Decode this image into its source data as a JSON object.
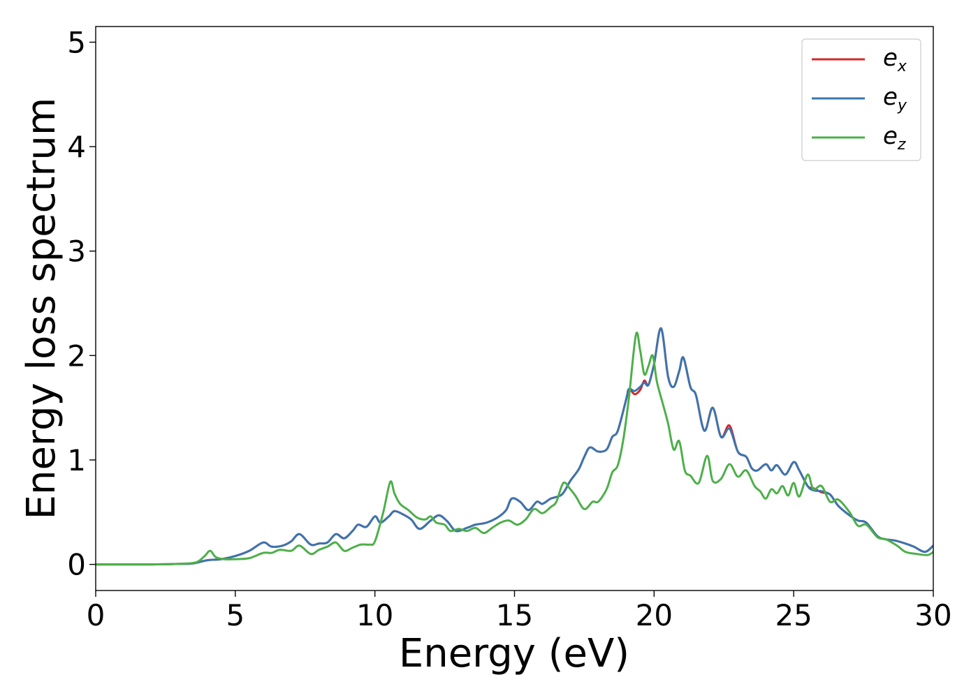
{
  "chart_data": {
    "type": "line",
    "xlabel": "Energy (eV)",
    "ylabel": "Energy loss spectrum",
    "xlim": [
      0,
      30
    ],
    "ylim": [
      -0.25,
      5.15
    ],
    "xticks": [
      "0",
      "5",
      "10",
      "15",
      "20",
      "25",
      "30"
    ],
    "yticks": [
      "0",
      "1",
      "2",
      "3",
      "4",
      "5"
    ],
    "grid": false,
    "legend_position": "top-right",
    "series": [
      {
        "name": "e_x",
        "legend_base": "e",
        "legend_sub": "x",
        "color": "#d62728",
        "x": [
          0,
          2,
          3,
          3.5,
          4,
          4.5,
          5,
          5.5,
          6,
          6.3,
          6.7,
          7,
          7.3,
          7.7,
          8,
          8.3,
          8.6,
          8.9,
          9.2,
          9.4,
          9.7,
          10,
          10.2,
          10.5,
          10.7,
          11,
          11.3,
          11.6,
          12,
          12.3,
          12.6,
          12.9,
          13.3,
          13.6,
          14,
          14.4,
          14.7,
          14.9,
          15.2,
          15.5,
          15.8,
          16,
          16.3,
          16.7,
          17,
          17.3,
          17.5,
          17.7,
          18,
          18.3,
          18.5,
          18.7,
          19,
          19.1,
          19.3,
          19.5,
          19.65,
          19.8,
          20,
          20.25,
          20.5,
          20.7,
          20.9,
          21.05,
          21.3,
          21.5,
          21.8,
          22.1,
          22.4,
          22.7,
          23,
          23.3,
          23.5,
          23.7,
          24,
          24.2,
          24.4,
          24.7,
          25,
          25.2,
          25.5,
          25.7,
          26,
          26.3,
          26.6,
          27,
          27.3,
          27.6,
          28,
          28.3,
          28.6,
          29,
          29.3,
          29.7,
          30
        ],
        "y": [
          0,
          0,
          0.005,
          0.01,
          0.04,
          0.05,
          0.08,
          0.13,
          0.21,
          0.17,
          0.18,
          0.22,
          0.29,
          0.19,
          0.2,
          0.21,
          0.29,
          0.25,
          0.32,
          0.38,
          0.36,
          0.46,
          0.4,
          0.46,
          0.51,
          0.48,
          0.43,
          0.34,
          0.42,
          0.47,
          0.41,
          0.32,
          0.35,
          0.38,
          0.4,
          0.45,
          0.52,
          0.63,
          0.6,
          0.52,
          0.6,
          0.58,
          0.63,
          0.67,
          0.8,
          0.91,
          1.03,
          1.12,
          1.08,
          1.1,
          1.22,
          1.28,
          1.58,
          1.68,
          1.63,
          1.67,
          1.76,
          1.72,
          1.92,
          2.26,
          1.8,
          1.7,
          1.85,
          1.98,
          1.7,
          1.62,
          1.28,
          1.5,
          1.22,
          1.33,
          1.08,
          1.03,
          0.92,
          0.9,
          0.96,
          0.9,
          0.95,
          0.86,
          0.98,
          0.9,
          0.75,
          0.73,
          0.69,
          0.67,
          0.56,
          0.47,
          0.42,
          0.4,
          0.27,
          0.24,
          0.23,
          0.2,
          0.17,
          0.12,
          0.18
        ]
      },
      {
        "name": "e_y",
        "legend_base": "e",
        "legend_sub": "y",
        "color": "#3b75af",
        "x": [
          0,
          2,
          3,
          3.5,
          4,
          4.5,
          5,
          5.5,
          6,
          6.3,
          6.7,
          7,
          7.3,
          7.7,
          8,
          8.3,
          8.6,
          8.9,
          9.2,
          9.4,
          9.7,
          10,
          10.2,
          10.5,
          10.7,
          11,
          11.3,
          11.6,
          12,
          12.3,
          12.6,
          12.9,
          13.3,
          13.6,
          14,
          14.4,
          14.7,
          14.9,
          15.2,
          15.5,
          15.8,
          16,
          16.3,
          16.7,
          17,
          17.3,
          17.5,
          17.7,
          18,
          18.3,
          18.5,
          18.7,
          19,
          19.1,
          19.3,
          19.5,
          19.65,
          19.8,
          20,
          20.25,
          20.5,
          20.7,
          20.9,
          21.05,
          21.3,
          21.5,
          21.8,
          22.1,
          22.4,
          22.7,
          23,
          23.3,
          23.5,
          23.7,
          24,
          24.2,
          24.4,
          24.7,
          25,
          25.2,
          25.5,
          25.7,
          26,
          26.3,
          26.6,
          27,
          27.3,
          27.6,
          28,
          28.3,
          28.6,
          29,
          29.3,
          29.7,
          30
        ],
        "y": [
          0,
          0,
          0.005,
          0.01,
          0.04,
          0.05,
          0.08,
          0.13,
          0.21,
          0.17,
          0.18,
          0.22,
          0.29,
          0.19,
          0.2,
          0.21,
          0.29,
          0.25,
          0.32,
          0.38,
          0.36,
          0.46,
          0.4,
          0.46,
          0.51,
          0.48,
          0.43,
          0.34,
          0.42,
          0.47,
          0.41,
          0.32,
          0.35,
          0.38,
          0.4,
          0.45,
          0.52,
          0.63,
          0.6,
          0.52,
          0.6,
          0.58,
          0.63,
          0.67,
          0.8,
          0.91,
          1.03,
          1.12,
          1.08,
          1.1,
          1.22,
          1.28,
          1.58,
          1.68,
          1.66,
          1.7,
          1.74,
          1.72,
          1.92,
          2.26,
          1.8,
          1.7,
          1.85,
          1.98,
          1.7,
          1.62,
          1.28,
          1.5,
          1.22,
          1.3,
          1.08,
          1.03,
          0.92,
          0.9,
          0.96,
          0.9,
          0.95,
          0.86,
          0.98,
          0.9,
          0.75,
          0.71,
          0.7,
          0.67,
          0.56,
          0.47,
          0.42,
          0.4,
          0.27,
          0.24,
          0.23,
          0.2,
          0.17,
          0.12,
          0.18
        ]
      },
      {
        "name": "e_z",
        "legend_base": "e",
        "legend_sub": "z",
        "color": "#4daf4a",
        "x": [
          0,
          2,
          3,
          3.6,
          3.9,
          4.1,
          4.3,
          4.6,
          5,
          5.5,
          6,
          6.3,
          6.6,
          7,
          7.3,
          7.7,
          8,
          8.3,
          8.6,
          8.9,
          9.2,
          9.5,
          9.8,
          10,
          10.3,
          10.55,
          10.7,
          10.9,
          11.2,
          11.5,
          11.8,
          12,
          12.2,
          12.5,
          12.7,
          13,
          13.3,
          13.6,
          13.9,
          14.2,
          14.5,
          14.8,
          15.1,
          15.4,
          15.7,
          16,
          16.3,
          16.5,
          16.75,
          17,
          17.2,
          17.5,
          17.8,
          18,
          18.3,
          18.5,
          18.7,
          18.9,
          19.1,
          19.35,
          19.5,
          19.65,
          19.8,
          19.95,
          20.1,
          20.3,
          20.5,
          20.7,
          20.9,
          21.1,
          21.3,
          21.6,
          21.9,
          22.1,
          22.4,
          22.7,
          23,
          23.3,
          23.6,
          23.8,
          24,
          24.2,
          24.4,
          24.6,
          24.8,
          25,
          25.2,
          25.5,
          25.7,
          26,
          26.3,
          26.6,
          27,
          27.3,
          27.6,
          28,
          28.3,
          28.7,
          29,
          29.4,
          29.8,
          30
        ],
        "y": [
          0,
          0,
          0.005,
          0.02,
          0.08,
          0.13,
          0.07,
          0.05,
          0.05,
          0.06,
          0.11,
          0.11,
          0.14,
          0.13,
          0.18,
          0.1,
          0.14,
          0.17,
          0.21,
          0.13,
          0.16,
          0.19,
          0.19,
          0.22,
          0.5,
          0.79,
          0.68,
          0.58,
          0.52,
          0.45,
          0.43,
          0.46,
          0.4,
          0.38,
          0.32,
          0.34,
          0.32,
          0.35,
          0.3,
          0.35,
          0.4,
          0.42,
          0.38,
          0.43,
          0.53,
          0.49,
          0.55,
          0.6,
          0.78,
          0.72,
          0.65,
          0.53,
          0.6,
          0.6,
          0.72,
          0.88,
          0.95,
          1.2,
          1.6,
          2.2,
          2.05,
          1.82,
          1.9,
          2.0,
          1.75,
          1.55,
          1.35,
          1.1,
          1.18,
          0.9,
          0.85,
          0.78,
          1.04,
          0.8,
          0.82,
          0.96,
          0.84,
          0.9,
          0.75,
          0.7,
          0.63,
          0.72,
          0.68,
          0.75,
          0.66,
          0.78,
          0.65,
          0.86,
          0.72,
          0.75,
          0.6,
          0.62,
          0.5,
          0.37,
          0.38,
          0.26,
          0.24,
          0.18,
          0.12,
          0.1,
          0.09,
          0.12
        ]
      }
    ]
  }
}
